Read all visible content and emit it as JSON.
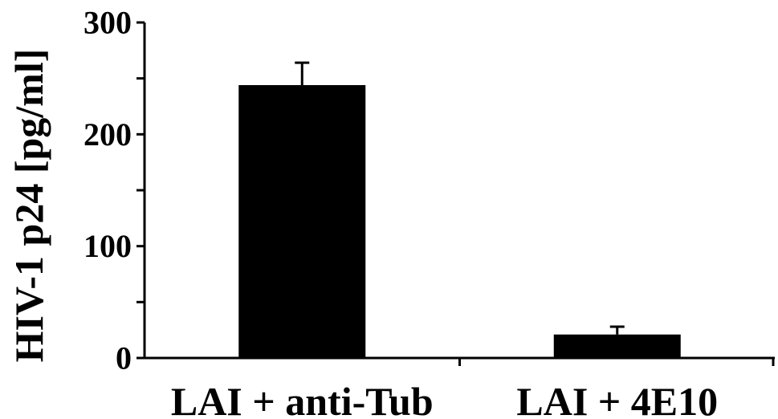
{
  "chart_data": {
    "type": "bar",
    "title": "",
    "xlabel": "",
    "ylabel": "HIV-1 p24 [pg/ml]",
    "categories": [
      "LAI + anti-Tub",
      "LAI + 4E10"
    ],
    "values": [
      244,
      21
    ],
    "errors": [
      20,
      7
    ],
    "ylim": [
      0,
      300
    ],
    "yticks": [
      0,
      100,
      200,
      300
    ],
    "ytick_labels": [
      "0",
      "100",
      "200",
      "300"
    ],
    "minor_tick_step": 50,
    "grid": false,
    "legend": "none",
    "bar_color": "#000000",
    "axis_color": "#000000"
  }
}
